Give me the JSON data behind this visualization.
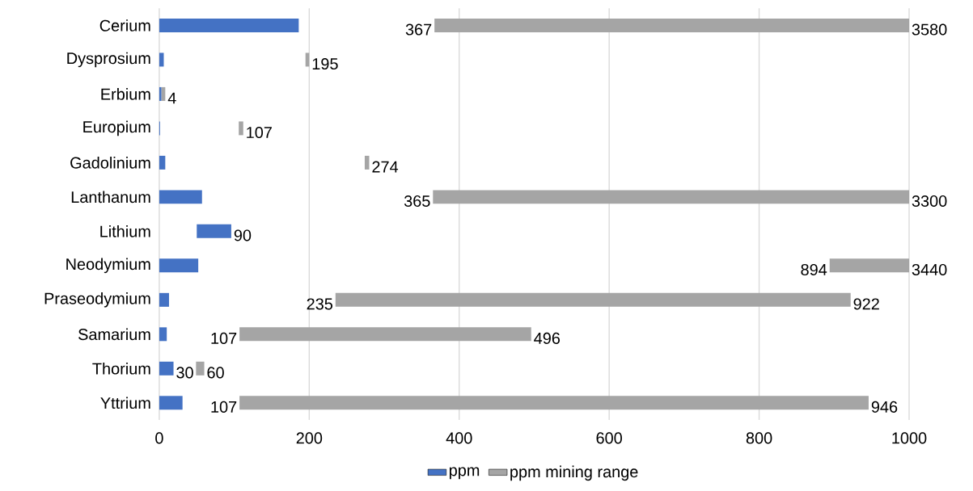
{
  "chart_data": {
    "type": "bar",
    "orientation": "horizontal",
    "categories": [
      "Cerium",
      "Dysprosium",
      "Erbium",
      "Europium",
      "Gadolinium",
      "Lanthanum",
      "Lithium",
      "Neodymium",
      "Praseodymium",
      "Samarium",
      "Thorium",
      "Yttrium"
    ],
    "series": [
      {
        "name": "ppm",
        "color": "#4472c4",
        "base": [
          0,
          0,
          0,
          0,
          0,
          0,
          50,
          0,
          0,
          0,
          0,
          0
        ],
        "values": [
          186,
          6,
          3,
          1,
          8,
          57,
          46,
          52,
          13,
          10,
          19,
          31
        ]
      },
      {
        "name": "ppm mining range",
        "color": "#a5a5a5",
        "base": [
          367,
          195,
          3,
          106,
          274,
          365,
          null,
          894,
          235,
          107,
          49,
          107
        ],
        "values": [
          633,
          5,
          5,
          6,
          6,
          635,
          null,
          106,
          687,
          389,
          11,
          839
        ]
      }
    ],
    "xlim": [
      0,
      1000
    ],
    "xticks": [
      0,
      200,
      400,
      600,
      800,
      1000
    ],
    "grid": "x",
    "legend": "bottom",
    "annotations": [
      {
        "text": "367",
        "x": 367,
        "y": "Cerium"
      },
      {
        "text": "3580",
        "x": 1000,
        "y": "Cerium"
      },
      {
        "text": "195",
        "x": 200,
        "y": "Dysprosium"
      },
      {
        "text": "4",
        "x": 8,
        "y": "Erbium"
      },
      {
        "text": "107",
        "x": 112,
        "y": "Europium"
      },
      {
        "text": "274",
        "x": 280,
        "y": "Gadolinium"
      },
      {
        "text": "365",
        "x": 365,
        "y": "Lanthanum"
      },
      {
        "text": "3300",
        "x": 1000,
        "y": "Lanthanum"
      },
      {
        "text": "90",
        "x": 96,
        "y": "Lithium"
      },
      {
        "text": "894",
        "x": 894,
        "y": "Neodymium"
      },
      {
        "text": "3440",
        "x": 1000,
        "y": "Neodymium"
      },
      {
        "text": "235",
        "x": 235,
        "y": "Praseodymium"
      },
      {
        "text": "922",
        "x": 922,
        "y": "Praseodymium"
      },
      {
        "text": "107",
        "x": 107,
        "y": "Samarium"
      },
      {
        "text": "496",
        "x": 496,
        "y": "Samarium"
      },
      {
        "text": "30",
        "x": 19,
        "y": "Thorium"
      },
      {
        "text": "60",
        "x": 60,
        "y": "Thorium"
      },
      {
        "text": "107",
        "x": 107,
        "y": "Yttrium"
      },
      {
        "text": "946",
        "x": 946,
        "y": "Yttrium"
      }
    ]
  }
}
